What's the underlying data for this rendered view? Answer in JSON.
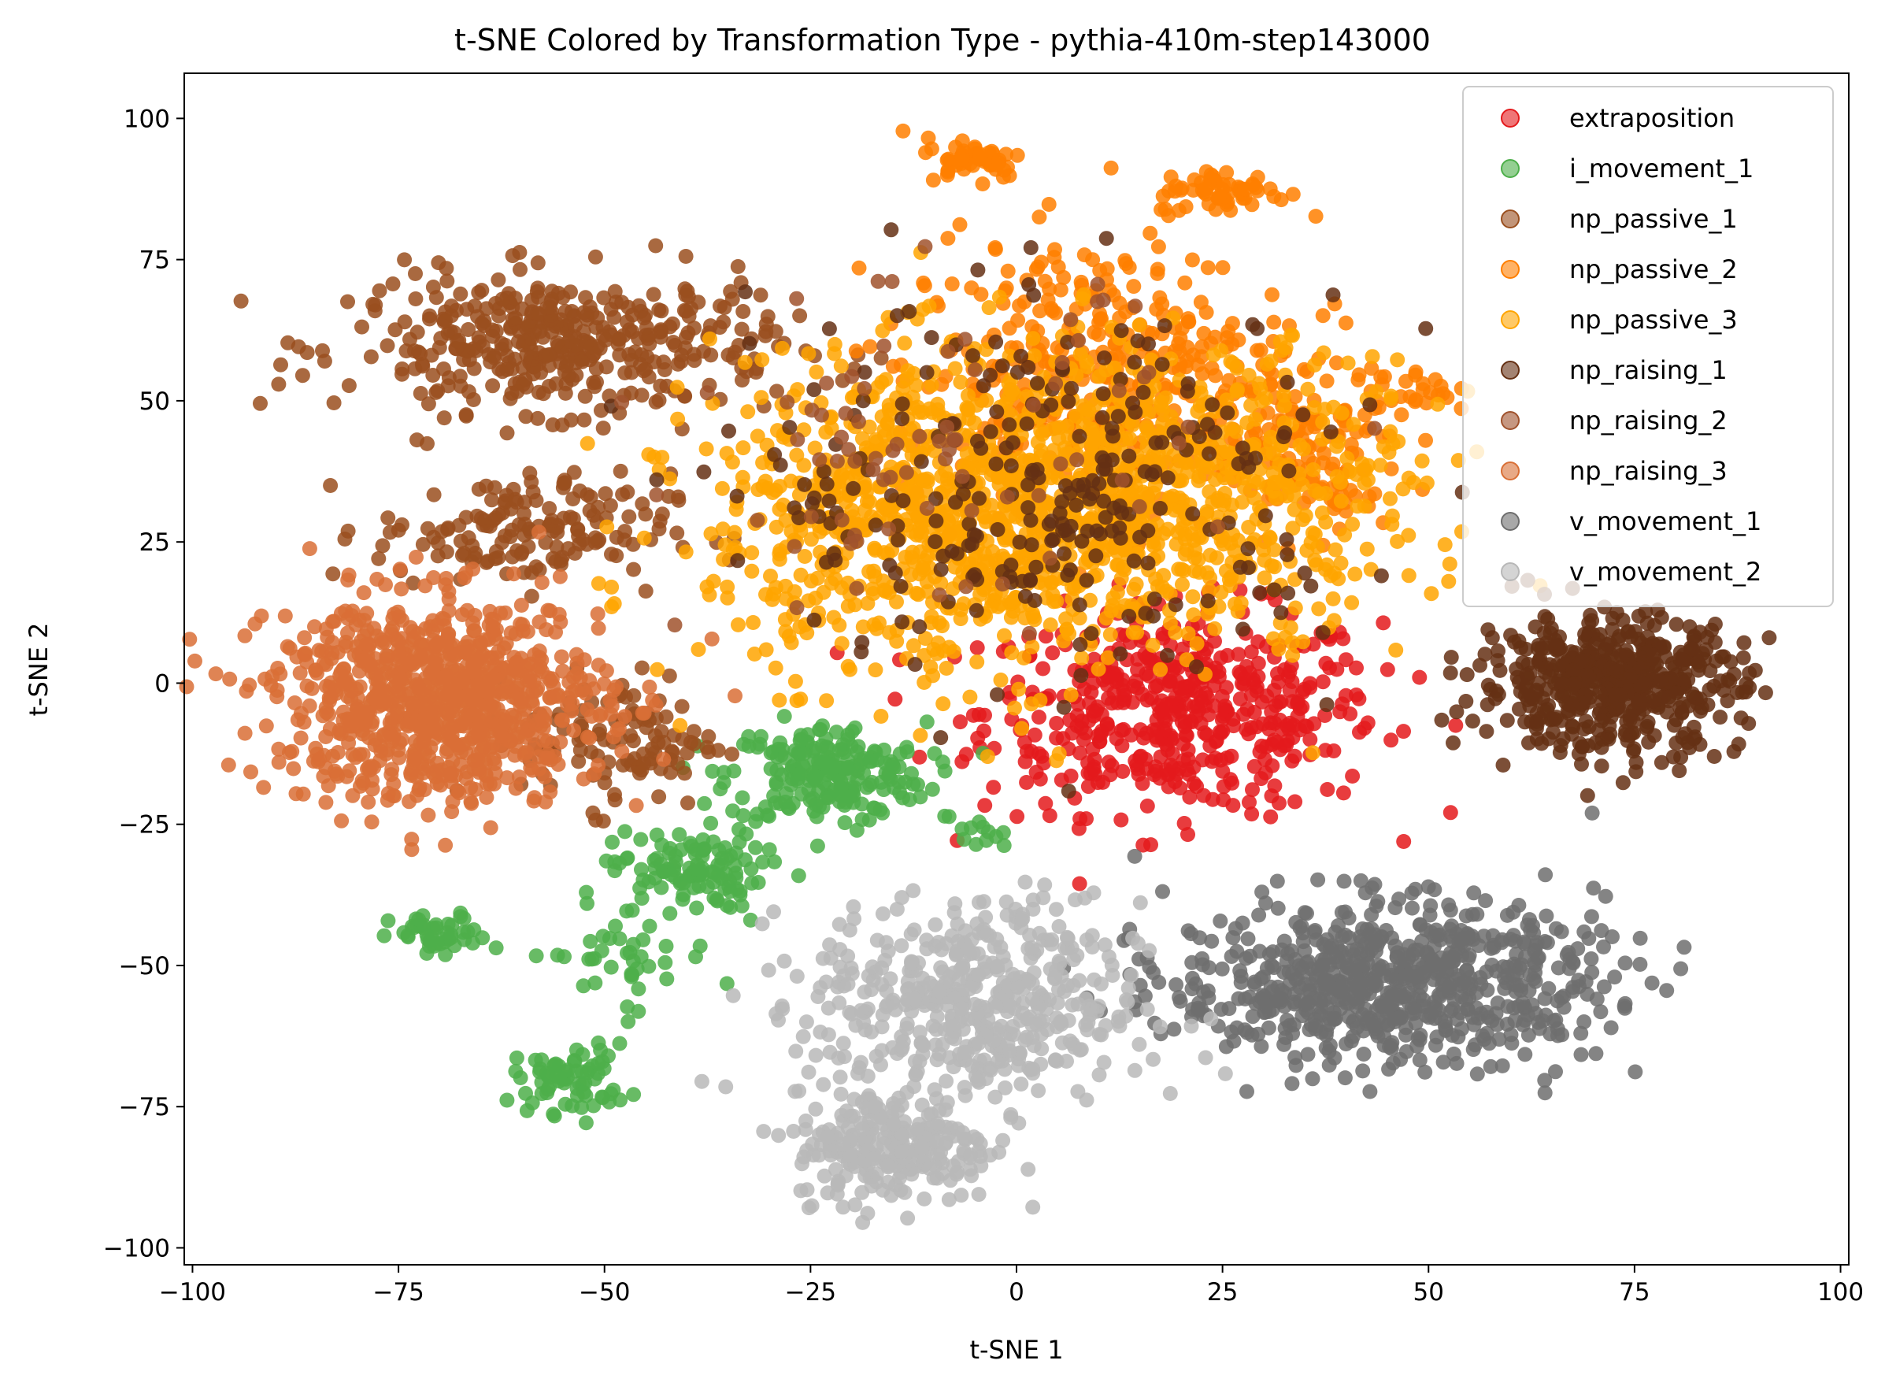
{
  "chart_data": {
    "type": "scatter",
    "title": "t-SNE Colored by Transformation Type - pythia-410m-step143000",
    "xlabel": "t-SNE 1",
    "ylabel": "t-SNE 2",
    "xlim": [
      -101,
      101
    ],
    "ylim": [
      -103,
      108
    ],
    "xticks": [
      -100,
      -75,
      -50,
      -25,
      0,
      25,
      50,
      75,
      100
    ],
    "yticks": [
      -100,
      -75,
      -50,
      -25,
      0,
      25,
      50,
      75,
      100
    ],
    "xtick_labels": [
      "−100",
      "−75",
      "−50",
      "−25",
      "0",
      "25",
      "50",
      "75",
      "100"
    ],
    "ytick_labels": [
      "−100",
      "−75",
      "−50",
      "−25",
      "0",
      "25",
      "50",
      "75",
      "100"
    ],
    "grid": false,
    "legend_position": "top-right",
    "series": [
      {
        "name": "extraposition",
        "color": "#e41a1c",
        "clusters": [
          {
            "cx": 20,
            "cy": -5,
            "sx": 12,
            "sy": 9,
            "n": 520
          }
        ]
      },
      {
        "name": "i_movement_1",
        "color": "#4daf4a",
        "clusters": [
          {
            "cx": -23,
            "cy": -16,
            "sx": 6,
            "sy": 4.5,
            "n": 220
          },
          {
            "cx": -40,
            "cy": -33,
            "sx": 4.5,
            "sy": 3.5,
            "n": 110
          },
          {
            "cx": -70,
            "cy": -45,
            "sx": 3,
            "sy": 2,
            "n": 45
          },
          {
            "cx": -54,
            "cy": -70,
            "sx": 3.5,
            "sy": 3,
            "n": 70
          },
          {
            "cx": -48,
            "cy": -48,
            "sx": 6,
            "sy": 5,
            "n": 45
          },
          {
            "cx": -5,
            "cy": -27,
            "sx": 2,
            "sy": 1.5,
            "n": 12
          }
        ]
      },
      {
        "name": "np_passive_1",
        "color": "#9a4f1f",
        "clusters": [
          {
            "cx": -55,
            "cy": 60,
            "sx": 13,
            "sy": 6,
            "n": 420
          },
          {
            "cx": -60,
            "cy": 27,
            "sx": 9,
            "sy": 5,
            "n": 160
          },
          {
            "cx": -48,
            "cy": -10,
            "sx": 6,
            "sy": 6,
            "n": 110
          }
        ]
      },
      {
        "name": "np_passive_2",
        "color": "#ff7f00",
        "clusters": [
          {
            "cx": -5,
            "cy": 93,
            "sx": 3,
            "sy": 1.8,
            "n": 50
          },
          {
            "cx": 25,
            "cy": 87,
            "sx": 4,
            "sy": 2,
            "n": 60
          },
          {
            "cx": 10,
            "cy": 55,
            "sx": 12,
            "sy": 12,
            "n": 400
          },
          {
            "cx": 35,
            "cy": 40,
            "sx": 6,
            "sy": 7,
            "n": 120
          },
          {
            "cx": 48,
            "cy": 52,
            "sx": 2.5,
            "sy": 2,
            "n": 25
          }
        ]
      },
      {
        "name": "np_passive_3",
        "color": "#ffa500",
        "clusters": [
          {
            "cx": -5,
            "cy": 30,
            "sx": 16,
            "sy": 14,
            "n": 1100
          },
          {
            "cx": 25,
            "cy": 35,
            "sx": 12,
            "sy": 12,
            "n": 400
          }
        ]
      },
      {
        "name": "np_raising_1",
        "color": "#653014",
        "clusters": [
          {
            "cx": 72,
            "cy": 0,
            "sx": 8,
            "sy": 6,
            "n": 520
          },
          {
            "cx": 5,
            "cy": 35,
            "sx": 18,
            "sy": 16,
            "n": 280
          }
        ]
      },
      {
        "name": "np_raising_2",
        "color": "#a0522d",
        "clusters": [
          {
            "cx": -10,
            "cy": 40,
            "sx": 15,
            "sy": 15,
            "n": 80
          }
        ]
      },
      {
        "name": "np_raising_3",
        "color": "#d96f36",
        "clusters": [
          {
            "cx": -70,
            "cy": -3,
            "sx": 10,
            "sy": 9,
            "n": 900
          }
        ]
      },
      {
        "name": "v_movement_1",
        "color": "#6e6e6e",
        "clusters": [
          {
            "cx": 45,
            "cy": -53,
            "sx": 13,
            "sy": 7,
            "n": 750
          }
        ]
      },
      {
        "name": "v_movement_2",
        "color": "#b8b8b8",
        "clusters": [
          {
            "cx": -5,
            "cy": -57,
            "sx": 10,
            "sy": 9,
            "n": 500
          },
          {
            "cx": -15,
            "cy": -82,
            "sx": 6,
            "sy": 5,
            "n": 250
          }
        ]
      }
    ]
  }
}
